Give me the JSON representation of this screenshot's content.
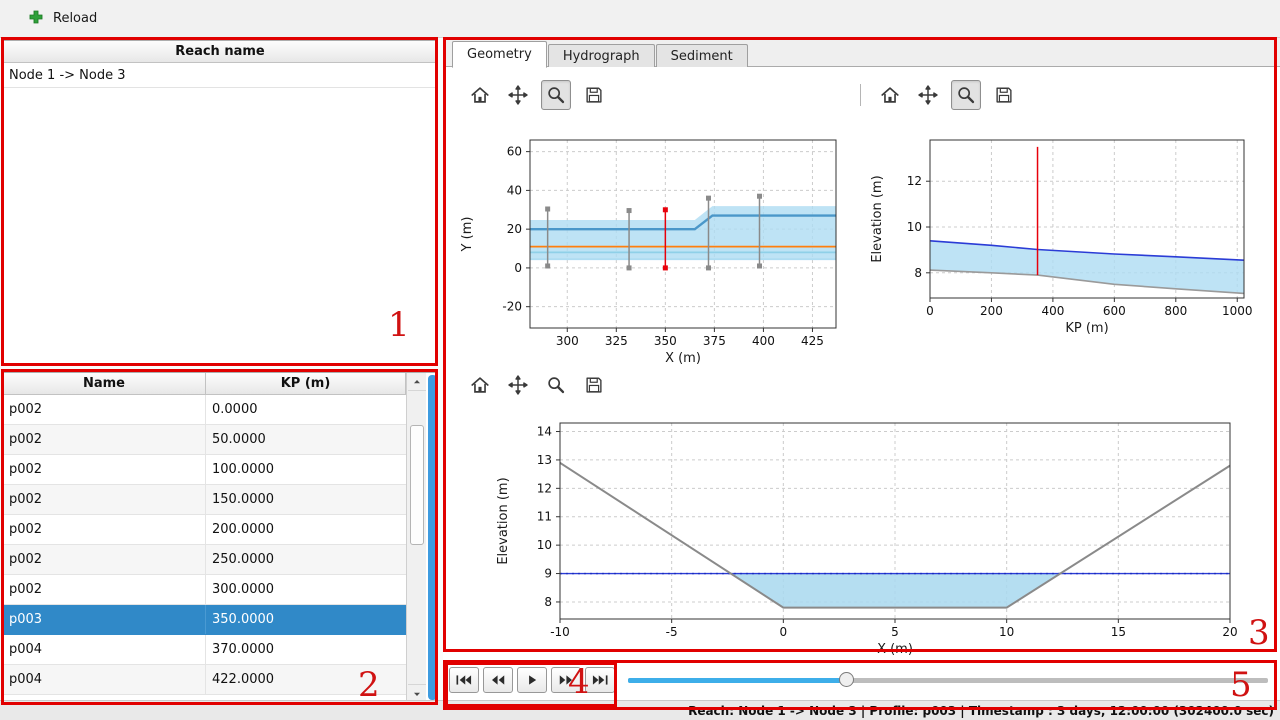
{
  "app": {
    "toolbar": {
      "reload_label": "Reload"
    },
    "status_bar": "Reach: Node 1 -> Node 3 | Profile: p003 | Timestamp : 3 days, 12:00:00 (302400.0 sec)"
  },
  "colors": {
    "selection_blue": "#3089c8",
    "accent_blue": "#3daee9",
    "annotation_red": "#e10000",
    "marker_red": "#e8000b",
    "water_fill": "#aedcf2"
  },
  "reach_panel": {
    "header": "Reach name",
    "items": [
      "Node 1 -> Node 3"
    ]
  },
  "profile_table": {
    "columns": [
      "Name",
      "KP (m)"
    ],
    "rows": [
      {
        "name": "p002",
        "kp": "0.0000",
        "selected": false
      },
      {
        "name": "p002",
        "kp": "50.0000",
        "selected": false
      },
      {
        "name": "p002",
        "kp": "100.0000",
        "selected": false
      },
      {
        "name": "p002",
        "kp": "150.0000",
        "selected": false
      },
      {
        "name": "p002",
        "kp": "200.0000",
        "selected": false
      },
      {
        "name": "p002",
        "kp": "250.0000",
        "selected": false
      },
      {
        "name": "p002",
        "kp": "300.0000",
        "selected": false
      },
      {
        "name": "p003",
        "kp": "350.0000",
        "selected": true
      },
      {
        "name": "p004",
        "kp": "370.0000",
        "selected": false
      },
      {
        "name": "p004",
        "kp": "422.0000",
        "selected": false
      }
    ]
  },
  "tabs": [
    {
      "label": "Geometry",
      "active": true
    },
    {
      "label": "Hydrograph",
      "active": false
    },
    {
      "label": "Sediment",
      "active": false
    }
  ],
  "mpl_toolbars": [
    {
      "name": "plan-chart-toolbar",
      "icons": [
        "home",
        "pan",
        "zoom",
        "save"
      ],
      "active": "zoom"
    },
    {
      "name": "profile-chart-toolbar",
      "icons": [
        "home",
        "pan",
        "zoom",
        "save"
      ],
      "active": "zoom"
    },
    {
      "name": "xsec-chart-toolbar",
      "icons": [
        "home",
        "pan",
        "zoom",
        "save"
      ],
      "active": null
    }
  ],
  "playback": {
    "buttons": [
      "skip-first",
      "fast-backward",
      "play",
      "fast-forward",
      "skip-last"
    ]
  },
  "slider": {
    "value_pct": 34
  },
  "annotations": [
    "1",
    "2",
    "3",
    "4",
    "5"
  ],
  "chart_data": [
    {
      "id": "plan",
      "type": "line",
      "title": "",
      "xlabel": "X (m)",
      "ylabel": "Y (m)",
      "xlim": [
        281,
        437
      ],
      "ylim": [
        -31,
        66
      ],
      "xticks": [
        300,
        325,
        350,
        375,
        400,
        425
      ],
      "yticks": [
        -20,
        0,
        20,
        40,
        60
      ],
      "grid": true,
      "fills": [
        {
          "name": "channel-band",
          "color": "#aedcf2",
          "opacity": 0.8,
          "points": [
            [
              281,
              24.7
            ],
            [
              365,
              24.7
            ],
            [
              374,
              31.9
            ],
            [
              437,
              31.9
            ],
            [
              437,
              4.5
            ],
            [
              281,
              4.5
            ]
          ]
        }
      ],
      "series": [
        {
          "name": "left-bank-line",
          "color": "#4a97c9",
          "width": 2.4,
          "points": [
            [
              281,
              20
            ],
            [
              365,
              20
            ],
            [
              374,
              27
            ],
            [
              437,
              27
            ]
          ]
        },
        {
          "name": "centerline",
          "color": "#ff7f0e",
          "width": 1.8,
          "points": [
            [
              281,
              11
            ],
            [
              437,
              11
            ]
          ]
        },
        {
          "name": "right-bank-line",
          "color": "#8fd0e8",
          "width": 1.8,
          "points": [
            [
              281,
              8
            ],
            [
              437,
              8
            ]
          ]
        },
        {
          "name": "band-bottom-line",
          "color": "#aedcf2",
          "width": 1.8,
          "points": [
            [
              281,
              4.5
            ],
            [
              437,
              4.5
            ]
          ]
        }
      ],
      "vlines": [
        {
          "x": 290,
          "y0": 1,
          "y1": 30.4,
          "color": "#8a8a8a",
          "marker": true
        },
        {
          "x": 331.5,
          "y0": 0,
          "y1": 29.6,
          "color": "#8a8a8a",
          "marker": true
        },
        {
          "x": 350,
          "y0": 0,
          "y1": 30,
          "color": "#e8000b",
          "marker": true
        },
        {
          "x": 372,
          "y0": 0,
          "y1": 36,
          "color": "#8a8a8a",
          "marker": true
        },
        {
          "x": 398,
          "y0": 1,
          "y1": 37,
          "color": "#8a8a8a",
          "marker": true
        }
      ]
    },
    {
      "id": "profile",
      "type": "line",
      "title": "",
      "xlabel": "KP (m)",
      "ylabel": "Elevation (m)",
      "xlim": [
        0,
        1022
      ],
      "ylim": [
        6.9,
        13.8
      ],
      "xticks": [
        0,
        200,
        400,
        600,
        800,
        1000
      ],
      "yticks": [
        8,
        10,
        12
      ],
      "grid": true,
      "fills": [
        {
          "name": "water-band",
          "color": "#aedcf2",
          "opacity": 0.8,
          "points": [
            [
              0,
              9.4
            ],
            [
              200,
              9.2
            ],
            [
              350,
              9.02
            ],
            [
              600,
              8.82
            ],
            [
              800,
              8.7
            ],
            [
              1022,
              8.55
            ],
            [
              1022,
              7.1
            ],
            [
              800,
              7.3
            ],
            [
              600,
              7.5
            ],
            [
              350,
              7.9
            ],
            [
              200,
              8.0
            ],
            [
              0,
              8.12
            ]
          ]
        }
      ],
      "series": [
        {
          "name": "water-level-line",
          "color": "#2b3cd6",
          "width": 1.6,
          "points": [
            [
              0,
              9.4
            ],
            [
              200,
              9.2
            ],
            [
              350,
              9.02
            ],
            [
              600,
              8.82
            ],
            [
              800,
              8.7
            ],
            [
              1022,
              8.55
            ]
          ]
        },
        {
          "name": "bed-level-line",
          "color": "#9a9a9a",
          "width": 1.6,
          "points": [
            [
              0,
              8.12
            ],
            [
              200,
              8.0
            ],
            [
              350,
              7.9
            ],
            [
              600,
              7.5
            ],
            [
              800,
              7.3
            ],
            [
              1022,
              7.1
            ]
          ]
        }
      ],
      "vlines": [
        {
          "x": 350,
          "y0": 7.9,
          "y1": 13.5,
          "color": "#e8000b",
          "marker": false
        }
      ]
    },
    {
      "id": "xsec",
      "type": "line",
      "title": "",
      "xlabel": "X (m)",
      "ylabel": "Elevation (m)",
      "xlim": [
        -10,
        20
      ],
      "ylim": [
        7.4,
        14.3
      ],
      "xticks": [
        -10,
        -5,
        0,
        5,
        10,
        15,
        20
      ],
      "yticks": [
        8,
        9,
        10,
        11,
        12,
        13,
        14
      ],
      "grid": true,
      "fills": [
        {
          "name": "water-area",
          "color": "#a8d8ee",
          "opacity": 0.85,
          "points": [
            [
              -2.4,
              9.0
            ],
            [
              0,
              7.8
            ],
            [
              10,
              7.8
            ],
            [
              12.4,
              9.0
            ]
          ]
        }
      ],
      "series": [
        {
          "name": "water-level-line",
          "color": "#2b3cd6",
          "width": 1.4,
          "points": [
            [
              -10,
              9.0
            ],
            [
              20,
              9.0
            ]
          ]
        },
        {
          "name": "water-level-dotted",
          "color": "#1b2cc0",
          "width": 1.4,
          "dash": "2,4",
          "points": [
            [
              -10,
              9.0
            ],
            [
              20,
              9.0
            ]
          ]
        },
        {
          "name": "bed-line",
          "color": "#8a8a8a",
          "width": 2,
          "points": [
            [
              -10,
              12.9
            ],
            [
              0,
              7.8
            ],
            [
              10,
              7.8
            ],
            [
              20,
              12.8
            ]
          ]
        }
      ],
      "vlines": []
    }
  ]
}
